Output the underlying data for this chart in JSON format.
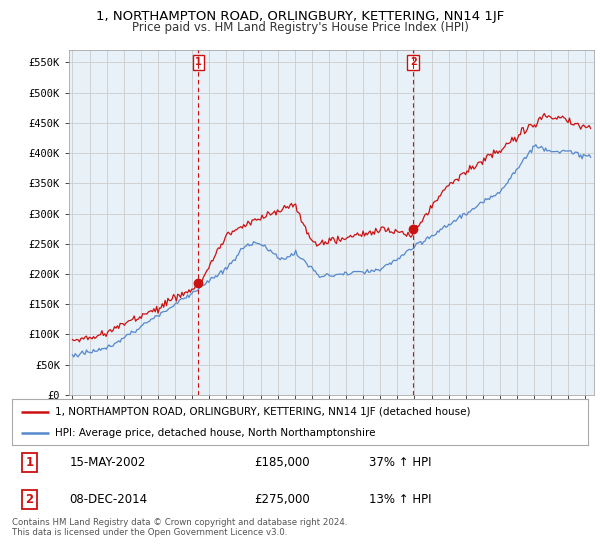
{
  "title": "1, NORTHAMPTON ROAD, ORLINGBURY, KETTERING, NN14 1JF",
  "subtitle": "Price paid vs. HM Land Registry's House Price Index (HPI)",
  "ylabel_ticks": [
    "£0",
    "£50K",
    "£100K",
    "£150K",
    "£200K",
    "£250K",
    "£300K",
    "£350K",
    "£400K",
    "£450K",
    "£500K",
    "£550K"
  ],
  "ytick_values": [
    0,
    50000,
    100000,
    150000,
    200000,
    250000,
    300000,
    350000,
    400000,
    450000,
    500000,
    550000
  ],
  "ylim": [
    0,
    570000
  ],
  "xlim_start": 1994.8,
  "xlim_end": 2025.5,
  "background_color": "#ffffff",
  "plot_bg_color": "#e8f0f8",
  "grid_color": "#cccccc",
  "hpi_line_color": "#5588cc",
  "property_line_color": "#cc1111",
  "sale1_x": 2002.37,
  "sale1_y": 185000,
  "sale2_x": 2014.93,
  "sale2_y": 275000,
  "vline1_x": 2002.37,
  "vline2_x": 2014.93,
  "vline_color": "#cc1111",
  "legend_property": "1, NORTHAMPTON ROAD, ORLINGBURY, KETTERING, NN14 1JF (detached house)",
  "legend_hpi": "HPI: Average price, detached house, North Northamptonshire",
  "annotation1_label": "1",
  "annotation2_label": "2",
  "table_row1": [
    "1",
    "15-MAY-2002",
    "£185,000",
    "37% ↑ HPI"
  ],
  "table_row2": [
    "2",
    "08-DEC-2014",
    "£275,000",
    "13% ↑ HPI"
  ],
  "footnote": "Contains HM Land Registry data © Crown copyright and database right 2024.\nThis data is licensed under the Open Government Licence v3.0.",
  "title_fontsize": 9.5,
  "subtitle_fontsize": 8.5
}
